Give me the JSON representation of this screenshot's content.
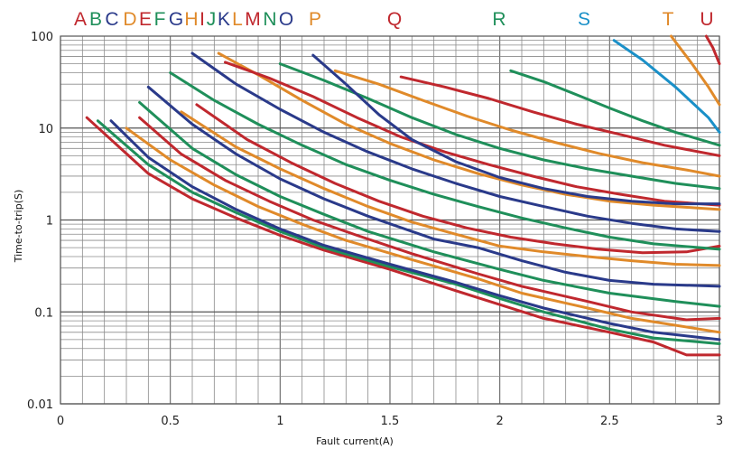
{
  "chart_data": {
    "type": "line",
    "title": "",
    "xlabel": "Fault current(A)",
    "ylabel": "Time-to-trip(S)",
    "xlim": [
      0,
      3
    ],
    "ylim": [
      0.01,
      100
    ],
    "yscale": "log",
    "grid": true,
    "x_tick_labels": [
      {
        "value": 0,
        "label": "0"
      },
      {
        "value": 0.5,
        "label": "0.5"
      },
      {
        "value": 1,
        "label": "1"
      },
      {
        "value": 1.5,
        "label": "1.5"
      },
      {
        "value": 2,
        "label": "2"
      },
      {
        "value": 2.5,
        "label": "2.5"
      },
      {
        "value": 3,
        "label": "3"
      }
    ],
    "y_tick_labels": [
      {
        "value": 100,
        "label": "100"
      },
      {
        "value": 10,
        "label": "10"
      },
      {
        "value": 1,
        "label": "1"
      },
      {
        "value": 0.1,
        "label": "0.1"
      },
      {
        "value": 0.01,
        "label": "0.01"
      }
    ],
    "series": [
      {
        "name": "A",
        "color": "#c0282e",
        "x": [
          0.12,
          0.4,
          0.6,
          0.8,
          1.0,
          1.2,
          1.5,
          1.8,
          2.0,
          2.2,
          2.5,
          2.7,
          2.85,
          3.0
        ],
        "y": [
          13,
          3.2,
          1.7,
          1.05,
          0.68,
          0.47,
          0.29,
          0.17,
          0.12,
          0.085,
          0.06,
          0.047,
          0.034,
          0.034
        ]
      },
      {
        "name": "B",
        "color": "#1f8f5a",
        "x": [
          0.17,
          0.4,
          0.6,
          0.8,
          1.0,
          1.2,
          1.5,
          1.8,
          2.0,
          2.2,
          2.5,
          2.7,
          3.0
        ],
        "y": [
          12,
          4.0,
          2.0,
          1.2,
          0.75,
          0.5,
          0.31,
          0.2,
          0.14,
          0.1,
          0.065,
          0.052,
          0.045
        ]
      },
      {
        "name": "C",
        "color": "#2a3a8a",
        "x": [
          0.23,
          0.4,
          0.6,
          0.8,
          1.0,
          1.2,
          1.5,
          1.8,
          2.0,
          2.2,
          2.5,
          2.7,
          3.0
        ],
        "y": [
          12,
          4.8,
          2.3,
          1.3,
          0.8,
          0.53,
          0.33,
          0.21,
          0.15,
          0.11,
          0.075,
          0.06,
          0.05
        ]
      },
      {
        "name": "D",
        "color": "#e08a2a",
        "x": [
          0.3,
          0.5,
          0.7,
          0.9,
          1.1,
          1.3,
          1.6,
          1.9,
          2.1,
          2.4,
          2.6,
          3.0
        ],
        "y": [
          10,
          4.5,
          2.4,
          1.4,
          0.9,
          0.6,
          0.37,
          0.23,
          0.16,
          0.11,
          0.085,
          0.06
        ]
      },
      {
        "name": "E",
        "color": "#c0282e",
        "x": [
          0.36,
          0.55,
          0.75,
          0.95,
          1.15,
          1.35,
          1.6,
          1.9,
          2.1,
          2.4,
          2.6,
          2.85,
          3.0
        ],
        "y": [
          13,
          5.2,
          2.7,
          1.6,
          1.0,
          0.68,
          0.43,
          0.26,
          0.19,
          0.13,
          0.1,
          0.082,
          0.085
        ]
      },
      {
        "name": "F",
        "color": "#1f8f5a",
        "x": [
          0.36,
          0.6,
          0.8,
          1.0,
          1.2,
          1.4,
          1.7,
          2.0,
          2.2,
          2.5,
          2.8,
          3.0
        ],
        "y": [
          19,
          6.0,
          3.1,
          1.8,
          1.15,
          0.75,
          0.45,
          0.29,
          0.22,
          0.16,
          0.13,
          0.115
        ]
      },
      {
        "name": "G",
        "color": "#2a3a8a",
        "x": [
          0.4,
          0.6,
          0.8,
          1.0,
          1.2,
          1.4,
          1.7,
          1.9,
          2.1,
          2.3,
          2.5,
          2.7,
          3.0
        ],
        "y": [
          28,
          11,
          5.2,
          2.8,
          1.7,
          1.1,
          0.62,
          0.5,
          0.36,
          0.27,
          0.22,
          0.2,
          0.19
        ]
      },
      {
        "name": "H",
        "color": "#e08a2a",
        "x": [
          0.55,
          0.8,
          1.0,
          1.2,
          1.4,
          1.6,
          1.8,
          2.0,
          2.2,
          2.4,
          2.6,
          2.8,
          3.0
        ],
        "y": [
          15,
          6.2,
          3.6,
          2.2,
          1.4,
          0.95,
          0.7,
          0.52,
          0.45,
          0.4,
          0.36,
          0.33,
          0.32
        ]
      },
      {
        "name": "I",
        "color": "#c0282e",
        "x": [
          0.62,
          0.85,
          1.05,
          1.25,
          1.45,
          1.65,
          1.85,
          2.05,
          2.25,
          2.45,
          2.65,
          2.85,
          3.0
        ],
        "y": [
          18,
          7.5,
          4.2,
          2.5,
          1.6,
          1.1,
          0.82,
          0.65,
          0.55,
          0.48,
          0.44,
          0.45,
          0.52
        ]
      },
      {
        "name": "J",
        "color": "#1f8f5a",
        "x": [
          0.5,
          0.7,
          0.9,
          1.1,
          1.3,
          1.5,
          1.7,
          1.9,
          2.1,
          2.3,
          2.5,
          2.7,
          3.0
        ],
        "y": [
          40,
          20,
          11,
          6.5,
          4.0,
          2.7,
          1.9,
          1.4,
          1.05,
          0.82,
          0.65,
          0.55,
          0.48
        ]
      },
      {
        "name": "K",
        "color": "#2a3a8a",
        "x": [
          0.6,
          0.8,
          1.0,
          1.2,
          1.4,
          1.6,
          1.8,
          2.0,
          2.2,
          2.4,
          2.6,
          2.8,
          3.0
        ],
        "y": [
          65,
          30,
          16,
          9.0,
          5.5,
          3.6,
          2.5,
          1.8,
          1.4,
          1.1,
          0.92,
          0.8,
          0.75
        ]
      },
      {
        "name": "L",
        "color": "#e08a2a",
        "x": [
          0.72,
          0.9,
          1.1,
          1.3,
          1.5,
          1.7,
          1.9,
          2.1,
          2.3,
          2.5,
          2.7,
          2.9,
          3.0
        ],
        "y": [
          65,
          38,
          20,
          11,
          6.8,
          4.5,
          3.2,
          2.4,
          1.9,
          1.6,
          1.45,
          1.35,
          1.3
        ]
      },
      {
        "name": "M",
        "color": "#c0282e",
        "x": [
          0.75,
          0.95,
          1.15,
          1.35,
          1.55,
          1.75,
          1.95,
          2.15,
          2.35,
          2.55,
          2.75,
          3.0
        ],
        "y": [
          52,
          35,
          22,
          13,
          8.0,
          5.5,
          4.0,
          3.0,
          2.3,
          1.9,
          1.6,
          1.45
        ]
      },
      {
        "name": "N",
        "color": "#1f8f5a",
        "x": [
          1.0,
          1.2,
          1.4,
          1.6,
          1.8,
          2.0,
          2.2,
          2.4,
          2.6,
          2.8,
          3.0
        ],
        "y": [
          50,
          33,
          21,
          13,
          8.5,
          6.0,
          4.5,
          3.6,
          3.0,
          2.5,
          2.2
        ]
      },
      {
        "name": "O",
        "color": "#2a3a8a",
        "x": [
          1.15,
          1.3,
          1.45,
          1.6,
          1.8,
          2.0,
          2.2,
          2.4,
          2.6,
          2.8,
          3.0
        ],
        "y": [
          62,
          30,
          14,
          7.5,
          4.3,
          2.9,
          2.2,
          1.8,
          1.6,
          1.5,
          1.5
        ]
      },
      {
        "name": "P",
        "color": "#e08a2a",
        "x": [
          1.25,
          1.45,
          1.65,
          1.85,
          2.05,
          2.25,
          2.45,
          2.65,
          2.85,
          3.0
        ],
        "y": [
          42,
          30,
          20,
          13.5,
          9.5,
          7.0,
          5.3,
          4.2,
          3.5,
          3.0
        ]
      },
      {
        "name": "Q",
        "color": "#c0282e",
        "x": [
          1.55,
          1.75,
          1.95,
          2.15,
          2.35,
          2.55,
          2.75,
          3.0
        ],
        "y": [
          36,
          28,
          21,
          15,
          11,
          8.5,
          6.5,
          5.0
        ]
      },
      {
        "name": "R",
        "color": "#1f8f5a",
        "x": [
          2.05,
          2.2,
          2.35,
          2.5,
          2.65,
          2.8,
          3.0
        ],
        "y": [
          42,
          32,
          23,
          16.5,
          12,
          9.0,
          6.5
        ]
      },
      {
        "name": "S",
        "color": "#1a90c8",
        "x": [
          2.52,
          2.65,
          2.8,
          2.95,
          3.0
        ],
        "y": [
          90,
          55,
          28,
          13,
          9
        ]
      },
      {
        "name": "T",
        "color": "#e08a2a",
        "x": [
          2.78,
          2.87,
          2.95,
          3.0
        ],
        "y": [
          100,
          52,
          28,
          18
        ]
      },
      {
        "name": "U",
        "color": "#c0282e",
        "x": [
          2.94,
          2.97,
          3.0
        ],
        "y": [
          100,
          75,
          50
        ]
      }
    ],
    "legend": {
      "placement": "top",
      "entries": [
        {
          "label": "A",
          "color": "#c0282e"
        },
        {
          "label": "B",
          "color": "#1f8f5a"
        },
        {
          "label": "C",
          "color": "#2a3a8a"
        },
        {
          "label": "D",
          "color": "#e08a2a"
        },
        {
          "label": "E",
          "color": "#c0282e"
        },
        {
          "label": "F",
          "color": "#1f8f5a"
        },
        {
          "label": "G",
          "color": "#2a3a8a"
        },
        {
          "label": "H",
          "color": "#e08a2a"
        },
        {
          "label": "I",
          "color": "#c0282e"
        },
        {
          "label": "J",
          "color": "#1f8f5a"
        },
        {
          "label": "K",
          "color": "#2a3a8a"
        },
        {
          "label": "L",
          "color": "#e08a2a"
        },
        {
          "label": "M",
          "color": "#c0282e"
        },
        {
          "label": "N",
          "color": "#1f8f5a"
        },
        {
          "label": "O",
          "color": "#2a3a8a"
        },
        {
          "label": "P",
          "color": "#e08a2a"
        },
        {
          "label": "Q",
          "color": "#c0282e"
        },
        {
          "label": "R",
          "color": "#1f8f5a"
        },
        {
          "label": "S",
          "color": "#1a90c8"
        },
        {
          "label": "T",
          "color": "#e08a2a"
        },
        {
          "label": "U",
          "color": "#c0282e"
        }
      ]
    }
  }
}
